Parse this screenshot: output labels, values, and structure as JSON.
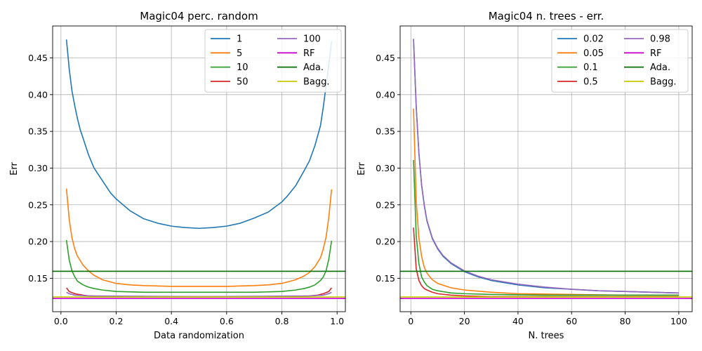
{
  "chart_data": [
    {
      "type": "line",
      "title": "Magic04 perc. random",
      "xlabel": "Data randomization",
      "ylabel": "Err",
      "xlim": [
        -0.03,
        1.03
      ],
      "ylim": [
        0.1045,
        0.4935
      ],
      "xticks": [
        0.0,
        0.2,
        0.4,
        0.6,
        0.8,
        1.0
      ],
      "xtick_labels": [
        "0.0",
        "0.2",
        "0.4",
        "0.6",
        "0.8",
        "1.0"
      ],
      "yticks": [
        0.15,
        0.2,
        0.25,
        0.3,
        0.35,
        0.4,
        0.45
      ],
      "ytick_labels": [
        "0.15",
        "0.20",
        "0.25",
        "0.30",
        "0.35",
        "0.40",
        "0.45"
      ],
      "grid": true,
      "legend_position": "top-right",
      "legend_columns": 2,
      "series": [
        {
          "name": "1",
          "color": "#1f77b4",
          "x": [
            0.02,
            0.03,
            0.04,
            0.05,
            0.06,
            0.07,
            0.08,
            0.1,
            0.12,
            0.15,
            0.18,
            0.2,
            0.25,
            0.3,
            0.35,
            0.4,
            0.45,
            0.5,
            0.55,
            0.6,
            0.65,
            0.7,
            0.75,
            0.8,
            0.82,
            0.85,
            0.88,
            0.9,
            0.92,
            0.94,
            0.95,
            0.96,
            0.97,
            0.98
          ],
          "y": [
            0.475,
            0.435,
            0.405,
            0.385,
            0.367,
            0.352,
            0.341,
            0.318,
            0.3,
            0.283,
            0.266,
            0.258,
            0.242,
            0.231,
            0.225,
            0.221,
            0.219,
            0.218,
            0.219,
            0.221,
            0.225,
            0.232,
            0.24,
            0.254,
            0.262,
            0.276,
            0.296,
            0.31,
            0.331,
            0.358,
            0.383,
            0.412,
            0.441,
            0.473
          ]
        },
        {
          "name": "5",
          "color": "#ff7f0e",
          "x": [
            0.02,
            0.03,
            0.04,
            0.05,
            0.06,
            0.08,
            0.1,
            0.12,
            0.15,
            0.2,
            0.25,
            0.3,
            0.4,
            0.5,
            0.6,
            0.7,
            0.75,
            0.8,
            0.85,
            0.88,
            0.9,
            0.92,
            0.94,
            0.95,
            0.96,
            0.97,
            0.98
          ],
          "y": [
            0.272,
            0.23,
            0.205,
            0.19,
            0.18,
            0.168,
            0.16,
            0.154,
            0.148,
            0.143,
            0.141,
            0.14,
            0.139,
            0.139,
            0.139,
            0.14,
            0.141,
            0.143,
            0.148,
            0.153,
            0.158,
            0.166,
            0.178,
            0.19,
            0.206,
            0.233,
            0.271
          ]
        },
        {
          "name": "10",
          "color": "#2ca02c",
          "x": [
            0.02,
            0.03,
            0.04,
            0.05,
            0.06,
            0.08,
            0.1,
            0.12,
            0.15,
            0.2,
            0.3,
            0.4,
            0.5,
            0.6,
            0.7,
            0.8,
            0.85,
            0.88,
            0.9,
            0.92,
            0.94,
            0.95,
            0.96,
            0.97,
            0.98
          ],
          "y": [
            0.202,
            0.175,
            0.16,
            0.152,
            0.146,
            0.141,
            0.138,
            0.136,
            0.134,
            0.132,
            0.131,
            0.131,
            0.131,
            0.131,
            0.131,
            0.132,
            0.134,
            0.136,
            0.138,
            0.141,
            0.147,
            0.152,
            0.16,
            0.176,
            0.201
          ]
        },
        {
          "name": "50",
          "color": "#d62728",
          "x": [
            0.02,
            0.03,
            0.05,
            0.08,
            0.1,
            0.2,
            0.5,
            0.8,
            0.9,
            0.93,
            0.95,
            0.97,
            0.98
          ],
          "y": [
            0.137,
            0.132,
            0.129,
            0.127,
            0.126,
            0.125,
            0.125,
            0.125,
            0.126,
            0.127,
            0.129,
            0.132,
            0.137
          ]
        },
        {
          "name": "100",
          "color": "#9467bd",
          "x": [
            0.02,
            0.03,
            0.05,
            0.1,
            0.5,
            0.9,
            0.95,
            0.97,
            0.98
          ],
          "y": [
            0.131,
            0.129,
            0.127,
            0.126,
            0.125,
            0.126,
            0.127,
            0.129,
            0.131
          ]
        },
        {
          "name": "RF",
          "color": "#cc00cc",
          "hline": 0.1225
        },
        {
          "name": "Ada.",
          "color": "#007000",
          "hline": 0.1595
        },
        {
          "name": "Bagg.",
          "color": "#c8c800",
          "hline": 0.1245
        }
      ]
    },
    {
      "type": "line",
      "title": "Magic04 n. trees - err.",
      "xlabel": "N. trees",
      "ylabel": "Err",
      "xlim": [
        -4.0,
        105.0
      ],
      "ylim": [
        0.1045,
        0.4935
      ],
      "xticks": [
        0,
        20,
        40,
        60,
        80,
        100
      ],
      "xtick_labels": [
        "0",
        "20",
        "40",
        "60",
        "80",
        "100"
      ],
      "yticks": [
        0.15,
        0.2,
        0.25,
        0.3,
        0.35,
        0.4,
        0.45
      ],
      "ytick_labels": [
        "0.15",
        "0.20",
        "0.25",
        "0.30",
        "0.35",
        "0.40",
        "0.45"
      ],
      "grid": true,
      "legend_position": "top-right",
      "legend_columns": 2,
      "series": [
        {
          "name": "0.02",
          "color": "#1f77b4",
          "x": [
            1,
            2,
            3,
            4,
            5,
            6,
            8,
            10,
            12,
            15,
            20,
            25,
            30,
            40,
            50,
            60,
            70,
            80,
            90,
            100
          ],
          "y": [
            0.475,
            0.383,
            0.32,
            0.277,
            0.249,
            0.228,
            0.204,
            0.19,
            0.18,
            0.17,
            0.159,
            0.152,
            0.147,
            0.141,
            0.137,
            0.135,
            0.133,
            0.132,
            0.131,
            0.13
          ]
        },
        {
          "name": "0.05",
          "color": "#ff7f0e",
          "x": [
            1,
            2,
            3,
            4,
            5,
            6,
            8,
            10,
            15,
            20,
            30,
            40,
            60,
            80,
            100
          ],
          "y": [
            0.381,
            0.255,
            0.205,
            0.18,
            0.165,
            0.157,
            0.148,
            0.143,
            0.137,
            0.134,
            0.131,
            0.129,
            0.128,
            0.127,
            0.127
          ]
        },
        {
          "name": "0.1",
          "color": "#2ca02c",
          "x": [
            1,
            2,
            3,
            4,
            5,
            6,
            8,
            10,
            15,
            20,
            30,
            50,
            100
          ],
          "y": [
            0.311,
            0.208,
            0.17,
            0.152,
            0.145,
            0.14,
            0.135,
            0.133,
            0.13,
            0.129,
            0.128,
            0.127,
            0.127
          ]
        },
        {
          "name": "0.5",
          "color": "#d62728",
          "x": [
            1,
            2,
            3,
            4,
            5,
            6,
            8,
            10,
            15,
            20,
            30,
            50,
            100
          ],
          "y": [
            0.219,
            0.163,
            0.147,
            0.14,
            0.136,
            0.134,
            0.131,
            0.129,
            0.127,
            0.126,
            0.125,
            0.125,
            0.125
          ]
        },
        {
          "name": "0.98",
          "color": "#9467bd",
          "x": [
            1,
            2,
            3,
            4,
            5,
            6,
            8,
            10,
            12,
            15,
            20,
            25,
            30,
            40,
            50,
            60,
            70,
            80,
            90,
            100
          ],
          "y": [
            0.476,
            0.384,
            0.321,
            0.278,
            0.25,
            0.229,
            0.205,
            0.191,
            0.181,
            0.171,
            0.16,
            0.153,
            0.148,
            0.142,
            0.138,
            0.135,
            0.133,
            0.132,
            0.131,
            0.13
          ]
        },
        {
          "name": "RF",
          "color": "#cc00cc",
          "hline": 0.1225
        },
        {
          "name": "Ada.",
          "color": "#007000",
          "hline": 0.1595
        },
        {
          "name": "Bagg.",
          "color": "#c8c800",
          "hline": 0.1245
        }
      ]
    }
  ]
}
